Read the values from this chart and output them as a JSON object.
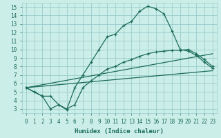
{
  "xlabel": "Humidex (Indice chaleur)",
  "bg_color": "#cceee8",
  "grid_color": "#99cccc",
  "line_color": "#1a6b5a",
  "xlim": [
    -0.5,
    23.5
  ],
  "ylim": [
    2.5,
    15.5
  ],
  "xticks": [
    0,
    1,
    2,
    3,
    4,
    5,
    6,
    7,
    8,
    9,
    10,
    11,
    12,
    13,
    14,
    15,
    16,
    17,
    18,
    19,
    20,
    21,
    22,
    23
  ],
  "yticks": [
    3,
    4,
    5,
    6,
    7,
    8,
    9,
    10,
    11,
    12,
    13,
    14,
    15
  ],
  "line1_x": [
    0,
    1,
    2,
    3,
    4,
    5,
    6,
    7,
    8,
    9,
    10,
    11,
    12,
    13,
    14,
    15,
    16,
    17,
    18,
    19,
    20,
    21,
    22,
    23
  ],
  "line1_y": [
    5.5,
    5.0,
    4.5,
    3.0,
    3.5,
    2.9,
    5.5,
    7.0,
    8.5,
    10.0,
    11.5,
    11.8,
    12.8,
    13.3,
    14.5,
    15.1,
    14.8,
    14.2,
    12.2,
    10.0,
    9.8,
    9.3,
    8.5,
    7.8
  ],
  "line2_x": [
    0,
    1,
    2,
    3,
    4,
    5,
    6,
    7,
    8,
    9,
    10,
    11,
    12,
    13,
    14,
    15,
    16,
    17,
    18,
    19,
    20,
    21,
    22,
    23
  ],
  "line2_y": [
    5.5,
    5.0,
    4.5,
    4.5,
    3.5,
    3.0,
    3.5,
    5.5,
    6.3,
    7.0,
    7.7,
    8.0,
    8.5,
    8.8,
    9.2,
    9.5,
    9.7,
    9.8,
    9.9,
    9.9,
    10.0,
    9.5,
    8.8,
    8.0
  ],
  "line3_x": [
    0,
    23
  ],
  "line3_y": [
    5.5,
    7.5
  ],
  "line4_x": [
    0,
    23
  ],
  "line4_y": [
    5.5,
    9.5
  ]
}
